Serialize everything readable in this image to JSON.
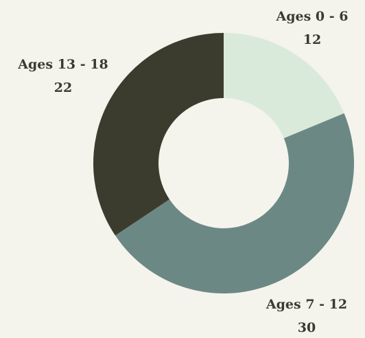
{
  "chart_data": {
    "type": "doughnut",
    "categories": [
      "Ages 0 - 6",
      "Ages 7 - 12",
      "Ages 13 - 18"
    ],
    "values": [
      12,
      30,
      22
    ],
    "colors": [
      "#d9eadb",
      "#6b8884",
      "#3b3c2e"
    ]
  }
}
